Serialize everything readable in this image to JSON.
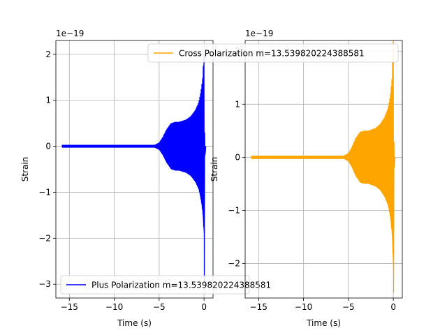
{
  "chart_data": [
    {
      "type": "line",
      "panel": "left",
      "scale_label": "1e−19",
      "xlabel": "Time (s)",
      "ylabel": "Strain",
      "xlim": [
        -16.5,
        1.0
      ],
      "ylim": [
        -3.3,
        2.3
      ],
      "xticks": [
        -15,
        -10,
        -5,
        0
      ],
      "xtick_labels": [
        "−15",
        "−10",
        "−5",
        "0"
      ],
      "yticks": [
        -3,
        -2,
        -1,
        0,
        1,
        2
      ],
      "ytick_labels": [
        "−3",
        "−2",
        "−1",
        "0",
        "1",
        "2"
      ],
      "grid": true,
      "legend_position": "lower-left",
      "series": [
        {
          "name": "Plus Polarization m=13.539820224388581",
          "color": "#0000ff",
          "x_start": -15.8,
          "x_end": 0.0,
          "ringdown_end": 0.2,
          "envelope": [
            [
              -15.8,
              0.03
            ],
            [
              -5.5,
              0.03
            ],
            [
              -5.0,
              0.08
            ],
            [
              -4.6,
              0.2
            ],
            [
              -4.2,
              0.36
            ],
            [
              -3.7,
              0.5
            ],
            [
              -3.2,
              0.53
            ],
            [
              -2.8,
              0.53
            ],
            [
              -2.0,
              0.58
            ],
            [
              -1.5,
              0.65
            ],
            [
              -1.0,
              0.78
            ],
            [
              -0.6,
              0.95
            ],
            [
              -0.35,
              1.2
            ],
            [
              -0.15,
              1.5
            ],
            [
              -0.05,
              1.9
            ],
            [
              0.0,
              2.0
            ]
          ],
          "min_spike": -3.0
        }
      ]
    },
    {
      "type": "line",
      "panel": "right",
      "scale_label": "1e−19",
      "xlabel": "Time (s)",
      "ylabel": "Strain",
      "xlim": [
        -16.5,
        1.0
      ],
      "ylim": [
        -2.65,
        2.2
      ],
      "xticks": [
        -15,
        -10,
        -5,
        0
      ],
      "xtick_labels": [
        "−15",
        "−10",
        "−5",
        "0"
      ],
      "yticks": [
        -2,
        -1,
        0,
        1,
        2
      ],
      "ytick_labels": [
        "−2",
        "−1",
        "0",
        "1",
        "2"
      ],
      "grid": true,
      "legend_position": "upper-left",
      "series": [
        {
          "name": "Cross Polarization m=13.539820224388581",
          "color": "#ffa500",
          "x_start": -15.8,
          "x_end": 0.0,
          "ringdown_end": 0.2,
          "envelope": [
            [
              -15.8,
              0.03
            ],
            [
              -5.5,
              0.03
            ],
            [
              -5.0,
              0.08
            ],
            [
              -4.6,
              0.2
            ],
            [
              -4.2,
              0.36
            ],
            [
              -3.7,
              0.48
            ],
            [
              -3.2,
              0.5
            ],
            [
              -2.8,
              0.5
            ],
            [
              -2.0,
              0.55
            ],
            [
              -1.5,
              0.62
            ],
            [
              -1.0,
              0.75
            ],
            [
              -0.6,
              0.92
            ],
            [
              -0.35,
              1.15
            ],
            [
              -0.15,
              1.5
            ],
            [
              -0.05,
              2.0
            ],
            [
              0.0,
              2.2
            ]
          ],
          "min_spike": -2.55
        }
      ]
    }
  ]
}
